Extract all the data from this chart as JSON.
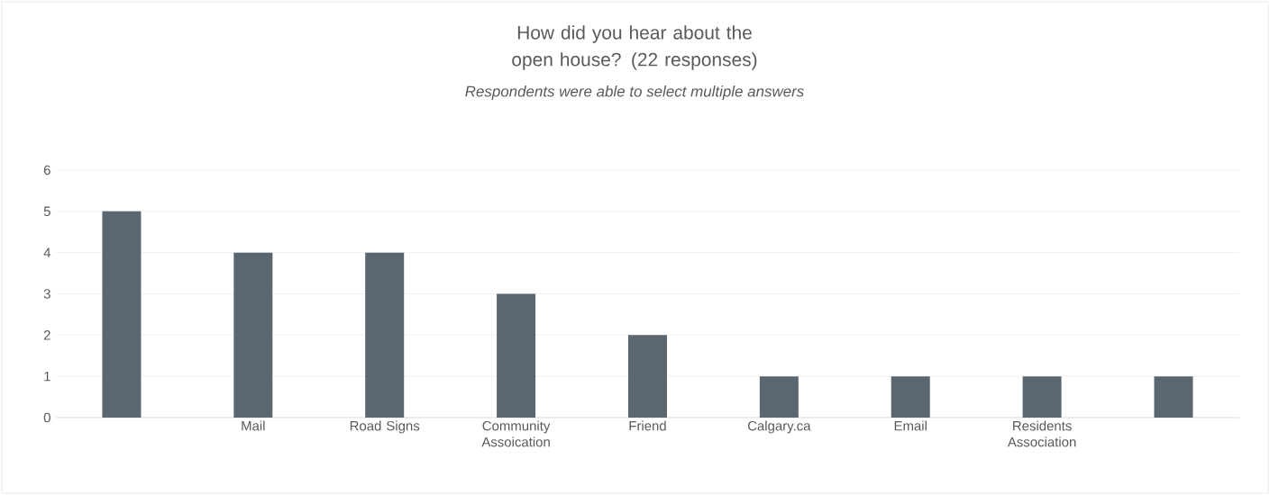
{
  "chart_data": {
    "type": "bar",
    "title": "How did you hear about the open house? (22 responses)",
    "subtitle": "Respondents were able to select multiple answers",
    "categories": [
      null,
      "Mail",
      "Road Signs",
      "Community Assoication",
      "Friend",
      "Calgary.ca",
      "Email",
      "Residents Association",
      null
    ],
    "values": [
      5,
      4,
      4,
      3,
      2,
      1,
      1,
      1,
      1
    ],
    "color": "#5a6670",
    "ylim": [
      0,
      6
    ],
    "yticks": [
      0,
      1,
      2,
      3,
      4,
      5,
      6
    ],
    "grid": "y"
  }
}
